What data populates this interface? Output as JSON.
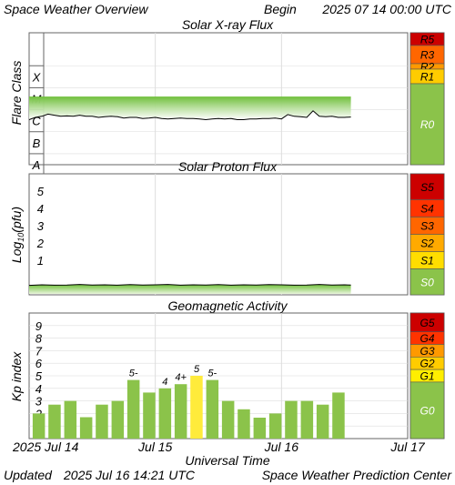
{
  "header": {
    "title": "Space Weather Overview",
    "begin_label": "Begin",
    "begin_value": "2025 07 14 00:00 UTC"
  },
  "footer": {
    "updated_label": "Updated",
    "updated_value": "2025 Jul 16 14:21 UTC",
    "source": "Space Weather Prediction Center"
  },
  "colors": {
    "grid": "#dddddd",
    "frame": "#666666",
    "green_scale": "#8bc34a",
    "kp_green": "#8bc34a",
    "kp_yellow": "#ffeb3b",
    "trace": "#000000",
    "fill_top": "#7cc242",
    "fill_bottom": "#ffffff"
  },
  "xaxis": {
    "label": "Universal Time",
    "unit": "days",
    "range": [
      0,
      3
    ],
    "ticks": [
      {
        "x": 0,
        "label": "2025 Jul 14"
      },
      {
        "x": 1,
        "label": "Jul 15"
      },
      {
        "x": 2,
        "label": "Jul 16"
      },
      {
        "x": 3,
        "label": "Jul 17"
      }
    ]
  },
  "chart_data": [
    {
      "type": "line",
      "title": "Solar X-ray Flux",
      "ylabel": "Flare Class",
      "y_scale": "log",
      "ylim": [
        -8.5,
        -2.5
      ],
      "class_labels": [
        {
          "label": "A",
          "y": -8
        },
        {
          "label": "B",
          "y": -7
        },
        {
          "label": "C",
          "y": -6
        },
        {
          "label": "M",
          "y": -5
        },
        {
          "label": "X",
          "y": -4
        }
      ],
      "series": [
        {
          "x": [
            0,
            0.05,
            0.1,
            0.15,
            0.2,
            0.25,
            0.3,
            0.35,
            0.4,
            0.45,
            0.5,
            0.55,
            0.6,
            0.65,
            0.7,
            0.75,
            0.8,
            0.85,
            0.9,
            0.95,
            1.0,
            1.05,
            1.1,
            1.15,
            1.2,
            1.25,
            1.3,
            1.35,
            1.4,
            1.45,
            1.5,
            1.55,
            1.6,
            1.65,
            1.7,
            1.75,
            1.8,
            1.85,
            1.9,
            1.95,
            2.0,
            2.05,
            2.1,
            2.15,
            2.2,
            2.25,
            2.3,
            2.35,
            2.4,
            2.45,
            2.5,
            2.55
          ],
          "values": [
            -6.45,
            -6.35,
            -6.3,
            -6.2,
            -6.25,
            -6.3,
            -6.28,
            -6.3,
            -6.25,
            -6.3,
            -6.3,
            -6.35,
            -6.32,
            -6.3,
            -6.32,
            -6.38,
            -6.35,
            -6.35,
            -6.4,
            -6.38,
            -6.35,
            -6.4,
            -6.42,
            -6.4,
            -6.38,
            -6.4,
            -6.4,
            -6.42,
            -6.45,
            -6.42,
            -6.4,
            -6.42,
            -6.4,
            -6.45,
            -6.45,
            -6.42,
            -6.42,
            -6.4,
            -6.4,
            -6.38,
            -6.42,
            -6.22,
            -6.3,
            -6.32,
            -6.35,
            -6.05,
            -6.3,
            -6.32,
            -6.3,
            -6.35,
            -6.35,
            -6.33
          ]
        }
      ],
      "scale": {
        "name_prefix": "R",
        "levels": [
          {
            "label": "R5",
            "color": "#cc0000"
          },
          {
            "label": "R3",
            "color": "#ff6600"
          },
          {
            "label": "R2",
            "color": "#ff9900"
          },
          {
            "label": "R1",
            "color": "#ffcc00"
          }
        ],
        "base": {
          "label": "R0",
          "color": "#8bc34a"
        }
      }
    },
    {
      "type": "line",
      "title": "Solar Proton Flux",
      "ylabel": "Log10(pfu)",
      "ylim": [
        -1,
        6
      ],
      "yticks": [
        1,
        2,
        3,
        4,
        5
      ],
      "series": [
        {
          "x": [
            0,
            0.1,
            0.2,
            0.3,
            0.4,
            0.5,
            0.6,
            0.7,
            0.8,
            0.9,
            1.0,
            1.1,
            1.2,
            1.3,
            1.4,
            1.5,
            1.6,
            1.7,
            1.8,
            1.9,
            2.0,
            2.1,
            2.2,
            2.3,
            2.4,
            2.5,
            2.55
          ],
          "values": [
            -0.45,
            -0.42,
            -0.44,
            -0.43,
            -0.4,
            -0.43,
            -0.42,
            -0.44,
            -0.41,
            -0.43,
            -0.42,
            -0.4,
            -0.44,
            -0.42,
            -0.43,
            -0.41,
            -0.44,
            -0.42,
            -0.43,
            -0.41,
            -0.42,
            -0.44,
            -0.43,
            -0.4,
            -0.43,
            -0.42,
            -0.43
          ]
        }
      ],
      "scale": {
        "levels": [
          {
            "label": "S5",
            "color": "#cc0000"
          },
          {
            "label": "S4",
            "color": "#ff3300"
          },
          {
            "label": "S3",
            "color": "#ff6600"
          },
          {
            "label": "S2",
            "color": "#ffaa00"
          },
          {
            "label": "S1",
            "color": "#ffdd00"
          }
        ],
        "base": {
          "label": "S0",
          "color": "#8bc34a"
        }
      }
    },
    {
      "type": "bar",
      "title": "Geomagnetic Activity",
      "ylabel": "Kp index",
      "ylim": [
        0,
        10
      ],
      "yticks": [
        1,
        2,
        3,
        4,
        5,
        6,
        7,
        8,
        9
      ],
      "bar_interval_hours": 3,
      "values": [
        2.0,
        2.7,
        3.0,
        1.7,
        2.7,
        3.0,
        4.67,
        3.67,
        4.0,
        4.33,
        5.0,
        4.67,
        3.0,
        2.33,
        1.67,
        2.0,
        3.0,
        3.0,
        2.7,
        3.67
      ],
      "bar_labels": [
        "",
        "",
        "",
        "",
        "",
        "",
        "5-",
        "",
        "4",
        "4+",
        "5",
        "5-",
        "",
        "",
        "",
        "",
        "",
        "",
        "",
        ""
      ],
      "scale": {
        "levels": [
          {
            "label": "G5",
            "color": "#cc0000"
          },
          {
            "label": "G4",
            "color": "#ff3300"
          },
          {
            "label": "G3",
            "color": "#ff9900"
          },
          {
            "label": "G2",
            "color": "#ffcc00"
          },
          {
            "label": "G1",
            "color": "#ffee00"
          }
        ],
        "base": {
          "label": "G0",
          "color": "#8bc34a"
        }
      }
    }
  ]
}
